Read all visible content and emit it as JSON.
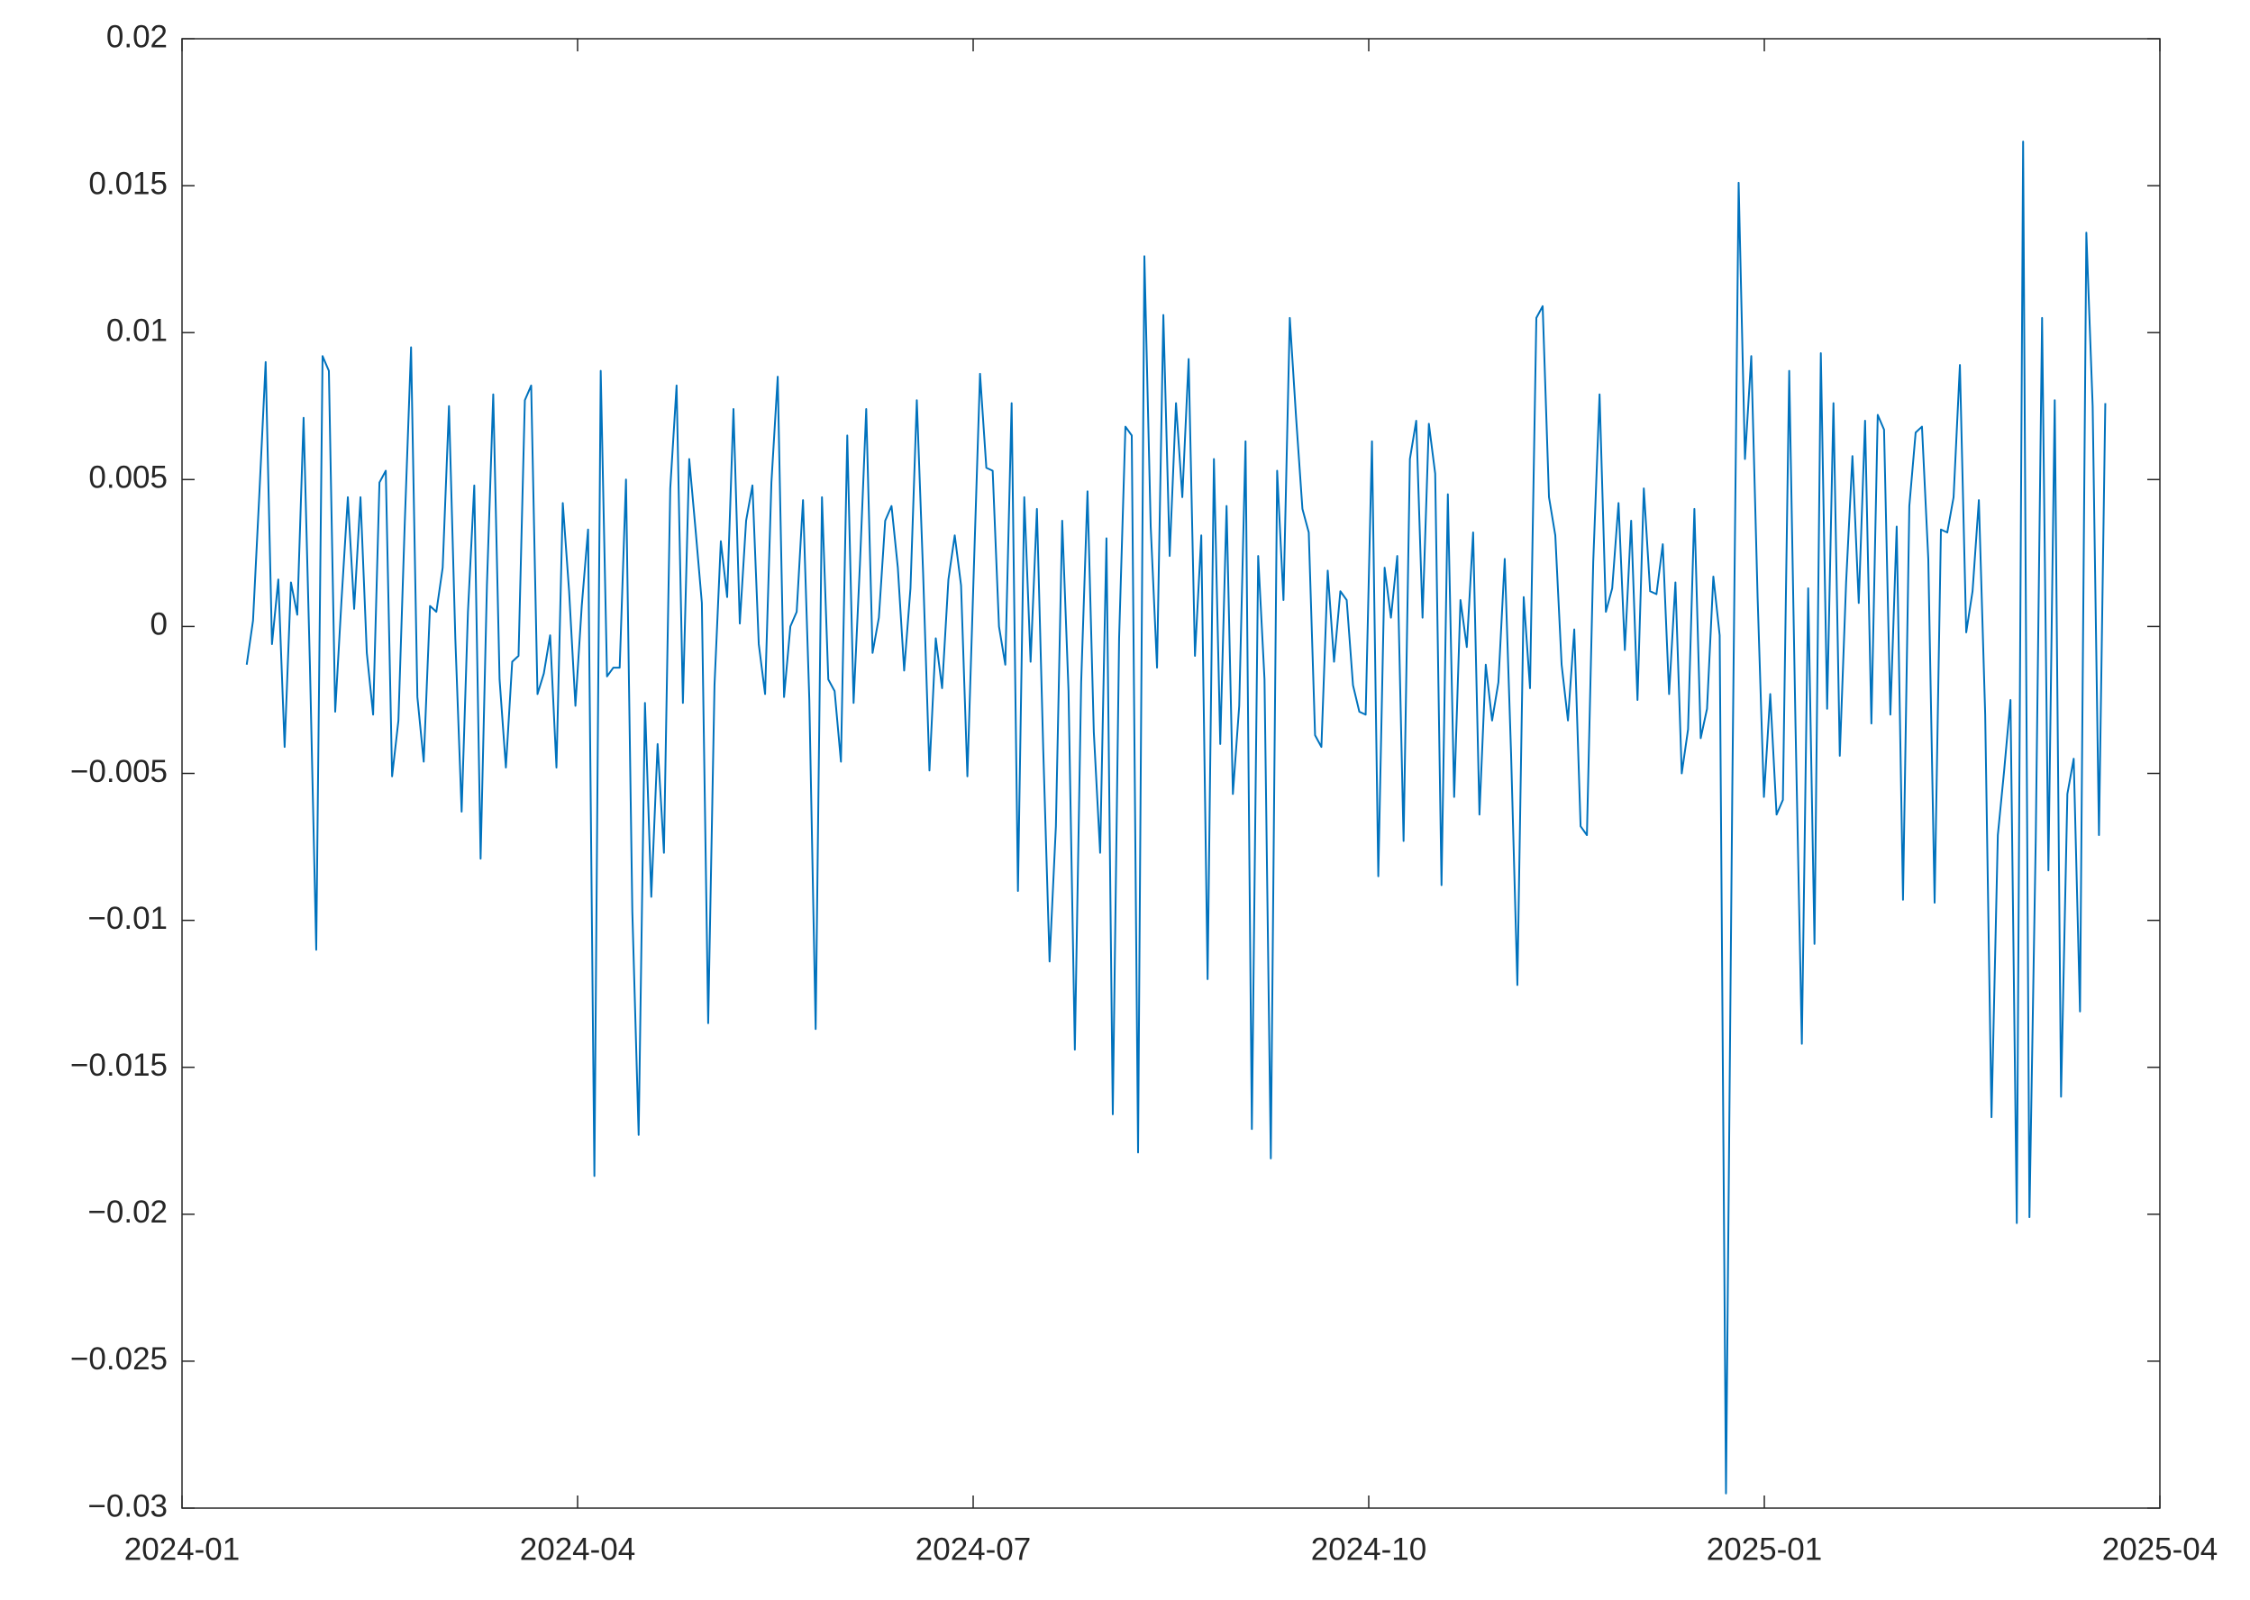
{
  "chart_data": {
    "type": "line",
    "color": "#0072bd",
    "grid": false,
    "xticks": [
      "2024-01",
      "2024-04",
      "2024-07",
      "2024-10",
      "2025-01",
      "2025-04"
    ],
    "ylim": [
      -0.03,
      0.02
    ],
    "yticks": [
      {
        "value": -0.03,
        "label": "−0.03"
      },
      {
        "value": -0.025,
        "label": "−0.025"
      },
      {
        "value": -0.02,
        "label": "−0.02"
      },
      {
        "value": -0.015,
        "label": "−0.015"
      },
      {
        "value": -0.01,
        "label": "−0.01"
      },
      {
        "value": -0.005,
        "label": "−0.005"
      },
      0,
      0.005,
      0.01,
      0.015,
      0.02
    ],
    "values": [
      -0.0013,
      0.0002,
      0.0045,
      0.009,
      -0.0006,
      0.0016,
      -0.0041,
      0.0015,
      0.0004,
      0.0071,
      -0.0013,
      -0.011,
      0.0092,
      0.0087,
      -0.0029,
      0.0009,
      0.0044,
      0.0006,
      0.0044,
      -0.0009,
      -0.003,
      0.0049,
      0.0053,
      -0.0051,
      -0.0032,
      0.0035,
      0.0095,
      -0.0024,
      -0.0046,
      0.0007,
      0.0005,
      0.002,
      0.0075,
      -0.0004,
      -0.0063,
      0.0005,
      0.0048,
      -0.0079,
      0.0014,
      0.0079,
      -0.0018,
      -0.0048,
      -0.0012,
      -0.001,
      0.0077,
      0.0082,
      -0.0023,
      -0.0016,
      -0.0003,
      -0.0048,
      0.0042,
      0.0012,
      -0.0027,
      0.0007,
      0.0033,
      -0.0187,
      0.0087,
      -0.0017,
      -0.0014,
      -0.0014,
      0.005,
      -0.0097,
      -0.0173,
      -0.0026,
      -0.0092,
      -0.004,
      -0.0077,
      0.0047,
      0.0082,
      -0.0026,
      0.0057,
      0.0033,
      0.0008,
      -0.0135,
      -0.002,
      0.0029,
      0.001,
      0.0074,
      0.0001,
      0.0036,
      0.0048,
      -0.0006,
      -0.0023,
      0.0049,
      0.0085,
      -0.0024,
      0,
      0.0005,
      0.0043,
      -0.0025,
      -0.0137,
      0.0044,
      -0.0018,
      -0.0022,
      -0.0046,
      0.0065,
      -0.0026,
      0.0021,
      0.0074,
      -0.0009,
      0.0003,
      0.0036,
      0.0041,
      0.002,
      -0.0015,
      0.0013,
      0.0077,
      0.0018,
      -0.0049,
      -0.0004,
      -0.0021,
      0.0016,
      0.0031,
      0.0014,
      -0.0051,
      0.0018,
      0.0086,
      0.0054,
      0.0053,
      0,
      -0.0013,
      0.0076,
      -0.009,
      0.0044,
      -0.0012,
      0.004,
      -0.0042,
      -0.0114,
      -0.0068,
      0.0036,
      -0.0022,
      -0.0144,
      -0.0019,
      0.0046,
      -0.0036,
      -0.0077,
      0.003,
      -0.0166,
      -0.0004,
      0.0068,
      0.0065,
      -0.0179,
      0.0126,
      0.0034,
      -0.0014,
      0.0106,
      0.0024,
      0.0076,
      0.0044,
      0.0091,
      -0.001,
      0.0031,
      -0.012,
      0.0057,
      -0.004,
      0.0041,
      -0.0057,
      -0.0027,
      0.0063,
      -0.0171,
      0.0024,
      -0.0018,
      -0.0181,
      0.0053,
      0.0009,
      0.0105,
      0.0071,
      0.004,
      0.0032,
      -0.0037,
      -0.0041,
      0.0019,
      -0.0012,
      0.0012,
      0.0009,
      -0.002,
      -0.0029,
      -0.003,
      0.0063,
      -0.0085,
      0.002,
      0.0003,
      0.0024,
      -0.0073,
      0.0057,
      0.007,
      0.0003,
      0.0069,
      0.0052,
      -0.0088,
      0.0045,
      -0.0058,
      0.0009,
      -0.0007,
      0.0032,
      -0.0064,
      -0.0013,
      -0.0032,
      -0.0019,
      0.0023,
      -0.0043,
      -0.0122,
      0.001,
      -0.0021,
      0.0105,
      0.0109,
      0.0044,
      0.0031,
      -0.0013,
      -0.0032,
      -0.0001,
      -0.0068,
      -0.0071,
      0.0022,
      0.0079,
      0.0005,
      0.0013,
      0.0042,
      -0.0008,
      0.0036,
      -0.0025,
      0.0047,
      0.0012,
      0.0011,
      0.0028,
      -0.0023,
      0.0015,
      -0.005,
      -0.0035,
      0.004,
      -0.0038,
      -0.0028,
      0.0017,
      -0.0003,
      -0.0295,
      -0.0055,
      0.0151,
      0.0057,
      0.0092,
      0.001,
      -0.0058,
      -0.0023,
      -0.0064,
      -0.0059,
      0.0087,
      -0.0034,
      -0.0142,
      0.0013,
      -0.0108,
      0.0093,
      -0.0028,
      0.0076,
      -0.0044,
      0.0015,
      0.0058,
      0.0008,
      0.007,
      -0.0033,
      0.0072,
      0.0067,
      -0.003,
      0.0034,
      -0.0093,
      0.0041,
      0.0066,
      0.0068,
      0.0023,
      -0.0094,
      0.0033,
      0.0032,
      0.0044,
      0.0089,
      -0.0002,
      0.0012,
      0.0043,
      -0.003,
      -0.0167,
      -0.0071,
      -0.0049,
      -0.0025,
      -0.0203,
      0.0165,
      -0.0201,
      -0.0072,
      0.0105,
      -0.0083,
      0.0077,
      -0.016,
      -0.0057,
      -0.0045,
      -0.0131,
      0.0134,
      0.0075,
      -0.0071,
      0.0076
    ]
  }
}
